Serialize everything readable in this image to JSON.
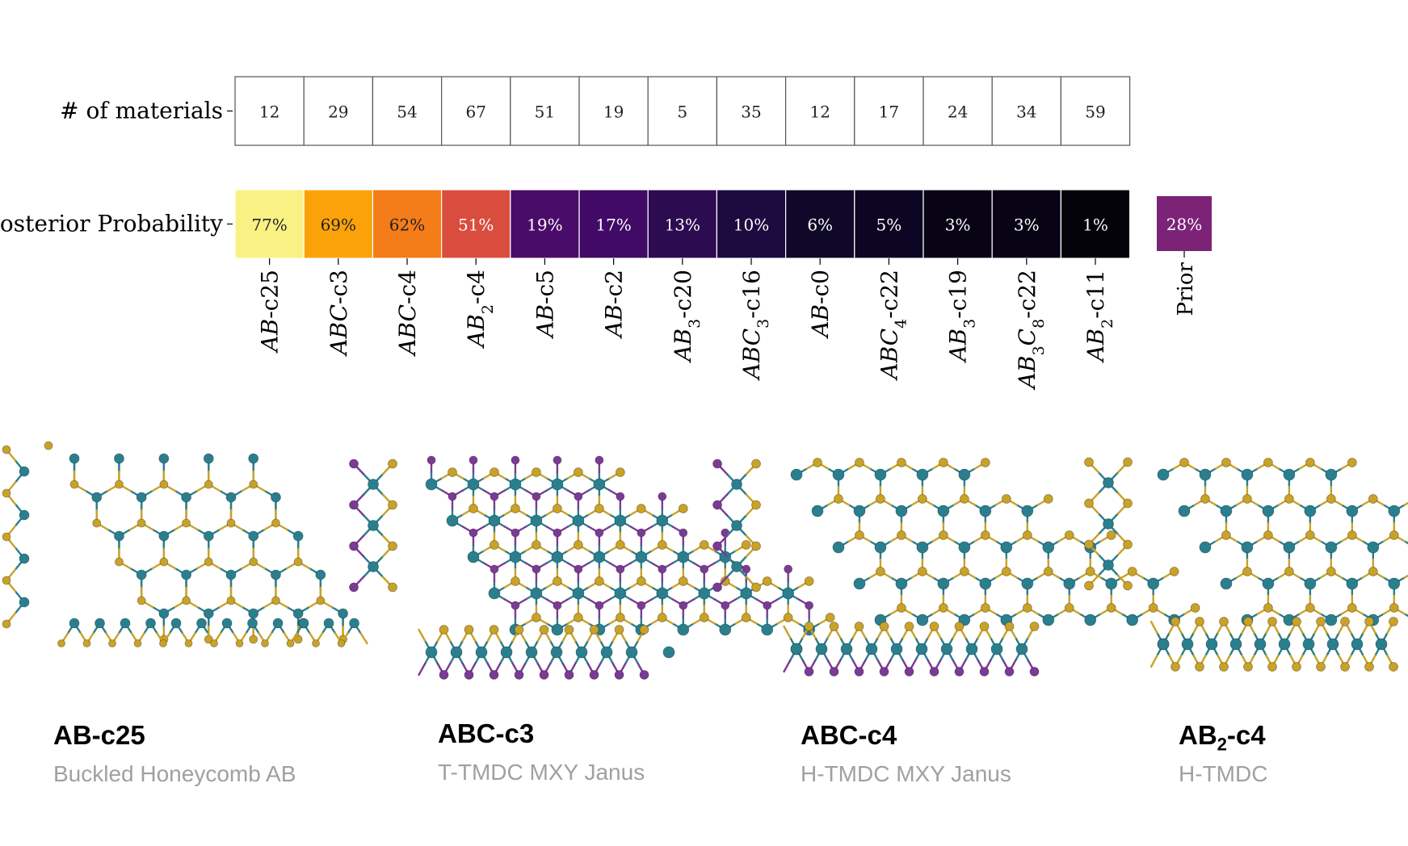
{
  "chart_data": {
    "type": "heatmap",
    "rows": [
      {
        "label": "# of materials",
        "values": [
          "12",
          "29",
          "54",
          "67",
          "51",
          "19",
          "5",
          "35",
          "12",
          "17",
          "24",
          "34",
          "59"
        ]
      },
      {
        "label": "Posterior Probability",
        "values": [
          "77%",
          "69%",
          "62%",
          "51%",
          "19%",
          "17%",
          "13%",
          "10%",
          "6%",
          "5%",
          "3%",
          "3%",
          "1%"
        ]
      }
    ],
    "posterior_numeric": [
      77,
      69,
      62,
      51,
      19,
      17,
      13,
      10,
      6,
      5,
      3,
      3,
      1
    ],
    "categories": [
      {
        "parts": [
          {
            "t": "AB"
          },
          {
            "t": "-c25",
            "u": 1
          }
        ]
      },
      {
        "parts": [
          {
            "t": "ABC"
          },
          {
            "t": "-c3",
            "u": 1
          }
        ]
      },
      {
        "parts": [
          {
            "t": "ABC"
          },
          {
            "t": "-c4",
            "u": 1
          }
        ]
      },
      {
        "parts": [
          {
            "t": "AB"
          },
          {
            "t": "2",
            "sub": 1
          },
          {
            "t": "-c4",
            "u": 1
          }
        ]
      },
      {
        "parts": [
          {
            "t": "AB"
          },
          {
            "t": "-c5",
            "u": 1
          }
        ]
      },
      {
        "parts": [
          {
            "t": "AB"
          },
          {
            "t": "-c2",
            "u": 1
          }
        ]
      },
      {
        "parts": [
          {
            "t": "AB"
          },
          {
            "t": "3",
            "sub": 1
          },
          {
            "t": "-c20",
            "u": 1
          }
        ]
      },
      {
        "parts": [
          {
            "t": "ABC"
          },
          {
            "t": "3",
            "sub": 1
          },
          {
            "t": "-c16",
            "u": 1
          }
        ]
      },
      {
        "parts": [
          {
            "t": "AB"
          },
          {
            "t": "-c0",
            "u": 1
          }
        ]
      },
      {
        "parts": [
          {
            "t": "ABC"
          },
          {
            "t": "4",
            "sub": 1
          },
          {
            "t": "-c22",
            "u": 1
          }
        ]
      },
      {
        "parts": [
          {
            "t": "AB"
          },
          {
            "t": "3",
            "sub": 1
          },
          {
            "t": "-c19",
            "u": 1
          }
        ]
      },
      {
        "parts": [
          {
            "t": "AB"
          },
          {
            "t": "3",
            "sub": 1
          },
          {
            "t": "C"
          },
          {
            "t": "8",
            "sub": 1
          },
          {
            "t": "-c22",
            "u": 1
          }
        ]
      },
      {
        "parts": [
          {
            "t": "AB"
          },
          {
            "t": "2",
            "sub": 1
          },
          {
            "t": "-c11",
            "u": 1
          }
        ]
      }
    ],
    "prior": {
      "label": "Prior",
      "value": "28%",
      "numeric": 28
    },
    "colormap": "inferno"
  },
  "colors": {
    "teal": "#2a7f8e",
    "gold": "#c9a227",
    "purple": "#7b3a96",
    "prior": "#7c2377",
    "grid": "#555555"
  },
  "structures": [
    {
      "title": "AB-c25",
      "subtitle": "Buckled Honeycomb AB",
      "type": "honeycomb"
    },
    {
      "title": "ABC-c3",
      "subtitle": "T-TMDC MXY Janus",
      "type": "janus-t"
    },
    {
      "title": "ABC-c4",
      "subtitle": "H-TMDC MXY Janus",
      "type": "janus-h"
    },
    {
      "title_main": "AB",
      "title_sub": "2",
      "title_rest": "-c4",
      "subtitle": "H-TMDC",
      "type": "tmdc"
    }
  ]
}
